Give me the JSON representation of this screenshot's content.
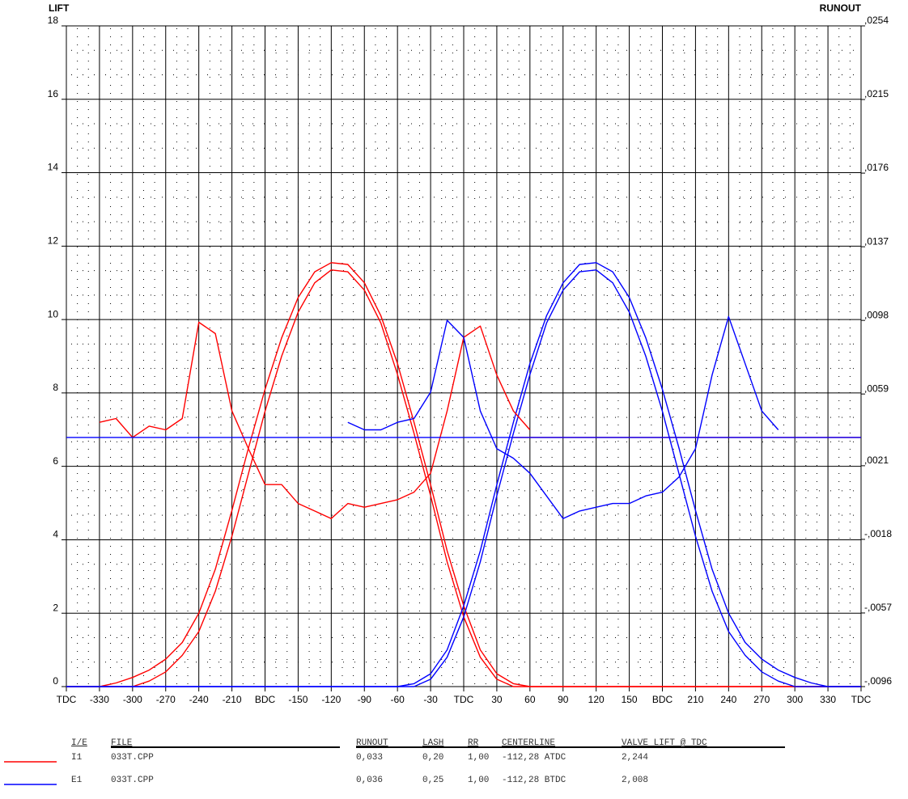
{
  "chart_data": {
    "type": "line",
    "ylabel": "LIFT",
    "y2label": "RUNOUT",
    "xlim": [
      -360,
      360
    ],
    "xticks": [
      {
        "value": -360,
        "label": "TDC"
      },
      -330,
      -300,
      -270,
      -240,
      -210,
      {
        "value": -180,
        "label": "BDC"
      },
      -150,
      -120,
      -90,
      -60,
      -30,
      {
        "value": 0,
        "label": "TDC"
      },
      30,
      60,
      90,
      120,
      150,
      {
        "value": 180,
        "label": "BDC"
      },
      210,
      240,
      270,
      300,
      330,
      {
        "value": 360,
        "label": "TDC"
      }
    ],
    "ylim": [
      0,
      18
    ],
    "yticks": [
      0,
      2,
      4,
      6,
      8,
      10,
      12,
      14,
      16,
      18
    ],
    "y2lim": [
      -0.0096,
      0.0254
    ],
    "y2ticks": [
      {
        "value": -0.0096,
        "label": "-,0096"
      },
      {
        "value": -0.0057,
        "label": "-,0057"
      },
      {
        "value": -0.0018,
        "label": "-,0018"
      },
      {
        "value": 0.0021,
        "label": ",0021"
      },
      {
        "value": 0.0059,
        "label": ",0059"
      },
      {
        "value": 0.0098,
        "label": ",0098"
      },
      {
        "value": 0.0137,
        "label": ",0137"
      },
      {
        "value": 0.0176,
        "label": ",0176"
      },
      {
        "value": 0.0215,
        "label": ",0215"
      },
      {
        "value": 0.0254,
        "label": ",0254"
      }
    ],
    "grid": true,
    "x": [
      -360,
      -345,
      -330,
      -315,
      -300,
      -285,
      -270,
      -255,
      -240,
      -225,
      -210,
      -195,
      -180,
      -165,
      -150,
      -135,
      -120,
      -105,
      -90,
      -75,
      -60,
      -45,
      -30,
      -15,
      0,
      15,
      30,
      45,
      60,
      75,
      90,
      105,
      120,
      135,
      150,
      165,
      180,
      195,
      210,
      225,
      240,
      255,
      270,
      285,
      300,
      315,
      330,
      345,
      360
    ],
    "series": [
      {
        "color": "#ff0000",
        "values": [
          0,
          0,
          0,
          0.1,
          0.25,
          0.45,
          0.75,
          1.2,
          2.0,
          3.2,
          4.8,
          6.5,
          8.1,
          9.5,
          10.6,
          11.3,
          11.55,
          11.5,
          11.0,
          10.1,
          8.8,
          7.2,
          5.5,
          3.7,
          2.2,
          1.0,
          0.35,
          0.08,
          0,
          0,
          0,
          0,
          0,
          0,
          0,
          0,
          0,
          0,
          0,
          0,
          0,
          0,
          0,
          0,
          0,
          0,
          0,
          0,
          0
        ]
      },
      {
        "color": "#ff0000",
        "values": [
          0,
          0,
          0,
          0,
          0,
          0.15,
          0.4,
          0.85,
          1.5,
          2.6,
          4.1,
          5.8,
          7.5,
          9.0,
          10.2,
          11.0,
          11.35,
          11.3,
          10.8,
          9.9,
          8.5,
          6.9,
          5.2,
          3.4,
          1.9,
          0.8,
          0.2,
          0,
          0,
          0,
          0,
          0,
          0,
          0,
          0,
          0,
          0,
          0,
          0,
          0,
          0,
          0,
          0,
          0,
          0,
          0,
          0,
          0,
          0
        ]
      },
      {
        "color": "#0000ff",
        "values": [
          0,
          0,
          0,
          0,
          0,
          0,
          0,
          0,
          0,
          0,
          0,
          0,
          0,
          0,
          0,
          0,
          0,
          0,
          0,
          0,
          0,
          0.08,
          0.35,
          1.0,
          2.2,
          3.7,
          5.5,
          7.2,
          8.8,
          10.1,
          11.0,
          11.5,
          11.55,
          11.3,
          10.6,
          9.5,
          8.1,
          6.5,
          4.8,
          3.2,
          2.0,
          1.2,
          0.75,
          0.45,
          0.25,
          0.1,
          0,
          0,
          0
        ]
      },
      {
        "color": "#0000ff",
        "values": [
          0,
          0,
          0,
          0,
          0,
          0,
          0,
          0,
          0,
          0,
          0,
          0,
          0,
          0,
          0,
          0,
          0,
          0,
          0,
          0,
          0,
          0,
          0.2,
          0.8,
          1.9,
          3.4,
          5.2,
          6.9,
          8.5,
          9.9,
          10.8,
          11.3,
          11.35,
          11.0,
          10.2,
          9.0,
          7.5,
          5.8,
          4.1,
          2.6,
          1.5,
          0.85,
          0.4,
          0.15,
          0,
          0,
          0,
          0,
          0
        ]
      },
      {
        "color": "#ff0000",
        "axis": "y2",
        "values": [
          null,
          null,
          0.0044,
          0.0046,
          0.0036,
          0.0042,
          0.004,
          0.0046,
          0.0097,
          0.0091,
          0.005,
          0.003,
          0.0011,
          0.0011,
          0.0001,
          -0.0003,
          -0.0007,
          0.0001,
          -0.0001,
          0.0001,
          0.0003,
          0.0007,
          0.0017,
          0.005,
          0.0089,
          0.0095,
          0.0069,
          0.005,
          0.004,
          null,
          null,
          null,
          null,
          null,
          null,
          null,
          null,
          null,
          null,
          null,
          null,
          null,
          null,
          null,
          null,
          null,
          null,
          null,
          null
        ]
      },
      {
        "color": "#0000ff",
        "axis": "y2",
        "values": [
          null,
          null,
          null,
          null,
          null,
          null,
          null,
          null,
          null,
          null,
          null,
          null,
          null,
          null,
          null,
          null,
          null,
          0.0044,
          0.004,
          0.004,
          0.0044,
          0.0046,
          0.006,
          0.0098,
          0.0089,
          0.005,
          0.003,
          0.0025,
          0.0017,
          0.0005,
          -0.0007,
          -0.0003,
          -0.0001,
          0.0001,
          0.0001,
          0.0005,
          0.0007,
          0.0015,
          0.003,
          0.0069,
          0.01,
          0.0075,
          0.005,
          0.004,
          null,
          null,
          null,
          null,
          null
        ]
      },
      {
        "color": "#ff0000",
        "axis": "y2",
        "values": [
          null,
          null,
          null,
          null,
          null,
          null,
          null,
          null,
          null,
          null,
          null,
          null,
          null,
          null,
          null,
          null,
          null,
          null,
          null,
          null,
          null,
          null,
          null,
          null,
          null,
          null,
          null,
          0.0036,
          0.0036,
          0.0036,
          0.0036,
          0.0036,
          0.0036,
          0.0036,
          0.0036,
          0.0036,
          0.0036,
          0.0036,
          0.0036,
          0.0036,
          0.0036,
          0.0036,
          0.0036,
          0.0036,
          0.0036,
          0.0036,
          0.0036,
          0.0036,
          0.0036
        ]
      },
      {
        "color": "#0000ff",
        "axis": "y2",
        "values": [
          0.0036,
          0.0036,
          0.0036,
          0.0036,
          0.0036,
          0.0036,
          0.0036,
          0.0036,
          0.0036,
          0.0036,
          0.0036,
          0.0036,
          0.0036,
          0.0036,
          0.0036,
          0.0036,
          0.0036,
          0.0036,
          0.0036,
          0.0036,
          0.0036,
          0.0036,
          0.0036,
          0.0036,
          0.0036,
          0.0036,
          0.0036,
          0.0036,
          0.0036,
          0.0036,
          0.0036,
          0.0036,
          0.0036,
          0.0036,
          0.0036,
          0.0036,
          0.0036,
          0.0036,
          0.0036,
          0.0036,
          0.0036,
          0.0036,
          0.0036,
          0.0036,
          0.0036,
          0.0036,
          0.0036,
          0.0036,
          0.0036
        ]
      }
    ],
    "legend_table": {
      "headers": [
        "I/E",
        "FILE",
        "RUNOUT",
        "LASH",
        "RR",
        "CENTERLINE",
        "VALVE LIFT @ TDC"
      ],
      "rows": [
        {
          "color": "#ff0000",
          "cells": [
            "I1",
            "033T.CPP",
            "0,033",
            "0,20",
            "1,00",
            "-112,28 ATDC",
            "2,244"
          ]
        },
        {
          "color": "#0000ff",
          "cells": [
            "E1",
            "033T.CPP",
            "0,036",
            "0,25",
            "1,00",
            "-112,28 BTDC",
            "2,008"
          ]
        }
      ]
    }
  }
}
